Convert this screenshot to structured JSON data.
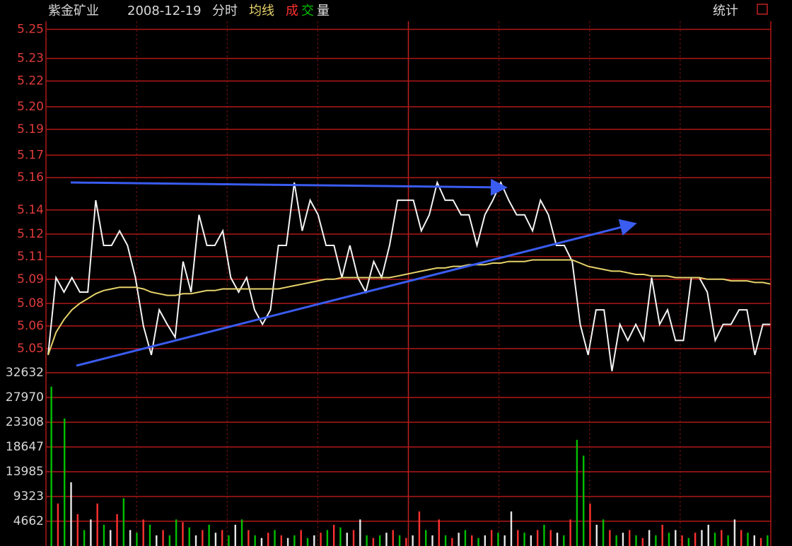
{
  "header": {
    "stock": "紫金矿业",
    "date": "2008-12-19",
    "view": "分时",
    "volume_legend": [
      "成",
      "交",
      "量"
    ],
    "tool": "统计"
  },
  "chart_data": [
    {
      "type": "line",
      "ylim": [
        5.035,
        5.25
      ],
      "yticks": [
        {
          "value": 5.05,
          "label": "5.05"
        },
        {
          "value": 5.064,
          "label": "5.06"
        },
        {
          "value": 5.078,
          "label": "5.08"
        },
        {
          "value": 5.093,
          "label": "5.09"
        },
        {
          "value": 5.107,
          "label": "5.11"
        },
        {
          "value": 5.121,
          "label": "5.12"
        },
        {
          "value": 5.136,
          "label": "5.14"
        },
        {
          "value": 5.156,
          "label": "5.16"
        },
        {
          "value": 5.17,
          "label": "5.17"
        },
        {
          "value": 5.186,
          "label": "5.19"
        },
        {
          "value": 5.2,
          "label": "5.20"
        },
        {
          "value": 5.216,
          "label": "5.22"
        },
        {
          "value": 5.23,
          "label": "5.23"
        },
        {
          "value": 5.248,
          "label": "5.25"
        }
      ],
      "grid": true,
      "series": [
        {
          "color": "#f4f4f4",
          "values": [
            5.046,
            5.094,
            5.085,
            5.094,
            5.085,
            5.085,
            5.142,
            5.114,
            5.114,
            5.123,
            5.114,
            5.094,
            5.064,
            5.046,
            5.074,
            5.065,
            5.057,
            5.104,
            5.085,
            5.133,
            5.114,
            5.114,
            5.123,
            5.094,
            5.085,
            5.094,
            5.074,
            5.065,
            5.074,
            5.114,
            5.114,
            5.153,
            5.123,
            5.142,
            5.133,
            5.114,
            5.114,
            5.094,
            5.114,
            5.094,
            5.085,
            5.104,
            5.094,
            5.114,
            5.142,
            5.142,
            5.142,
            5.123,
            5.133,
            5.153,
            5.142,
            5.142,
            5.133,
            5.133,
            5.114,
            5.133,
            5.142,
            5.153,
            5.142,
            5.133,
            5.133,
            5.123,
            5.142,
            5.133,
            5.114,
            5.114,
            5.104,
            5.065,
            5.046,
            5.074,
            5.074,
            5.036,
            5.065,
            5.055,
            5.065,
            5.055,
            5.094,
            5.065,
            5.074,
            5.055,
            5.055,
            5.094,
            5.094,
            5.085,
            5.055,
            5.065,
            5.065,
            5.074,
            5.074,
            5.046,
            5.065,
            5.065
          ]
        },
        {
          "name": "均线",
          "color": "#e6d36a",
          "values": [
            5.046,
            5.06,
            5.068,
            5.074,
            5.078,
            5.081,
            5.084,
            5.086,
            5.087,
            5.088,
            5.088,
            5.088,
            5.087,
            5.085,
            5.084,
            5.083,
            5.083,
            5.084,
            5.084,
            5.085,
            5.086,
            5.086,
            5.087,
            5.087,
            5.087,
            5.087,
            5.087,
            5.087,
            5.087,
            5.087,
            5.088,
            5.089,
            5.09,
            5.091,
            5.092,
            5.093,
            5.093,
            5.094,
            5.094,
            5.094,
            5.094,
            5.094,
            5.094,
            5.094,
            5.095,
            5.096,
            5.097,
            5.098,
            5.099,
            5.1,
            5.1,
            5.101,
            5.101,
            5.102,
            5.102,
            5.102,
            5.103,
            5.103,
            5.104,
            5.104,
            5.104,
            5.105,
            5.105,
            5.105,
            5.105,
            5.105,
            5.105,
            5.103,
            5.101,
            5.1,
            5.099,
            5.098,
            5.098,
            5.097,
            5.096,
            5.096,
            5.095,
            5.095,
            5.095,
            5.094,
            5.094,
            5.094,
            5.094,
            5.093,
            5.093,
            5.093,
            5.092,
            5.092,
            5.092,
            5.091,
            5.091,
            5.09
          ]
        }
      ]
    },
    {
      "type": "bar",
      "ylim": [
        0,
        32632
      ],
      "yticks": [
        4662,
        9323,
        13985,
        18647,
        23308,
        27970,
        32632
      ],
      "grid": true,
      "values": [
        30000,
        8000,
        24000,
        12000,
        6000,
        3000,
        5000,
        8000,
        4000,
        3000,
        6000,
        9000,
        3000,
        2500,
        5000,
        4000,
        2000,
        3000,
        2000,
        5000,
        4500,
        3500,
        2000,
        3000,
        4000,
        2500,
        3000,
        2000,
        4000,
        5000,
        3000,
        2000,
        1500,
        2500,
        3000,
        2000,
        1500,
        2000,
        3000,
        1500,
        2000,
        2500,
        3000,
        4000,
        3500,
        2500,
        3000,
        5000,
        2000,
        1500,
        2000,
        2500,
        3000,
        2000,
        1500,
        2000,
        6500,
        3000,
        2000,
        5000,
        2000,
        1500,
        2500,
        3000,
        2000,
        1500,
        2000,
        3000,
        2500,
        2000,
        6500,
        3000,
        2500,
        2000,
        3000,
        4000,
        3000,
        2500,
        2000,
        5000,
        20000,
        17000,
        8000,
        4000,
        5000,
        3000,
        2000,
        2500,
        3000,
        2000,
        1500,
        3000,
        2000,
        4000,
        2500,
        3000,
        2000,
        1500,
        2500,
        3000,
        4000,
        2500,
        3000,
        2000,
        5000,
        3000,
        2500,
        2000,
        1500,
        2000
      ],
      "colors": [
        "#00c000",
        "#ff3030",
        "#00c000",
        "#e8e8e8",
        "#ff3030",
        "#00c000",
        "#e8e8e8",
        "#ff3030",
        "#00c000",
        "#e8e8e8",
        "#ff3030",
        "#00c000",
        "#e8e8e8",
        "#00c000",
        "#ff3030",
        "#00c000",
        "#e8e8e8",
        "#ff3030",
        "#00c000",
        "#00c000",
        "#ff3030",
        "#00c000",
        "#e8e8e8",
        "#ff3030",
        "#00c000",
        "#e8e8e8",
        "#ff3030",
        "#00c000",
        "#e8e8e8",
        "#00c000",
        "#ff3030",
        "#00c000",
        "#e8e8e8",
        "#ff3030",
        "#00c000",
        "#ff3030",
        "#e8e8e8",
        "#00c000",
        "#ff3030",
        "#00c000",
        "#e8e8e8",
        "#ff3030",
        "#00c000",
        "#ff3030",
        "#00c000",
        "#e8e8e8",
        "#ff3030",
        "#e8e8e8",
        "#00c000",
        "#ff3030",
        "#00c000",
        "#e8e8e8",
        "#ff3030",
        "#00c000",
        "#ff3030",
        "#e8e8e8",
        "#ff3030",
        "#00c000",
        "#e8e8e8",
        "#ff3030",
        "#00c000",
        "#ff3030",
        "#e8e8e8",
        "#00c000",
        "#ff3030",
        "#00c000",
        "#e8e8e8",
        "#ff3030",
        "#00c000",
        "#e8e8e8",
        "#e8e8e8",
        "#ff3030",
        "#00c000",
        "#e8e8e8",
        "#ff3030",
        "#00c000",
        "#ff3030",
        "#e8e8e8",
        "#00c000",
        "#ff3030",
        "#00c000",
        "#00c000",
        "#ff3030",
        "#e8e8e8",
        "#00c000",
        "#ff3030",
        "#00c000",
        "#e8e8e8",
        "#ff3030",
        "#00c000",
        "#ff3030",
        "#e8e8e8",
        "#00c000",
        "#ff3030",
        "#00c000",
        "#e8e8e8",
        "#ff3030",
        "#00c000",
        "#ff3030",
        "#e8e8e8",
        "#e8e8e8",
        "#00c000",
        "#ff3030",
        "#00c000",
        "#e8e8e8",
        "#ff3030",
        "#00c000",
        "#e8e8e8",
        "#ff3030",
        "#00c000"
      ]
    }
  ]
}
